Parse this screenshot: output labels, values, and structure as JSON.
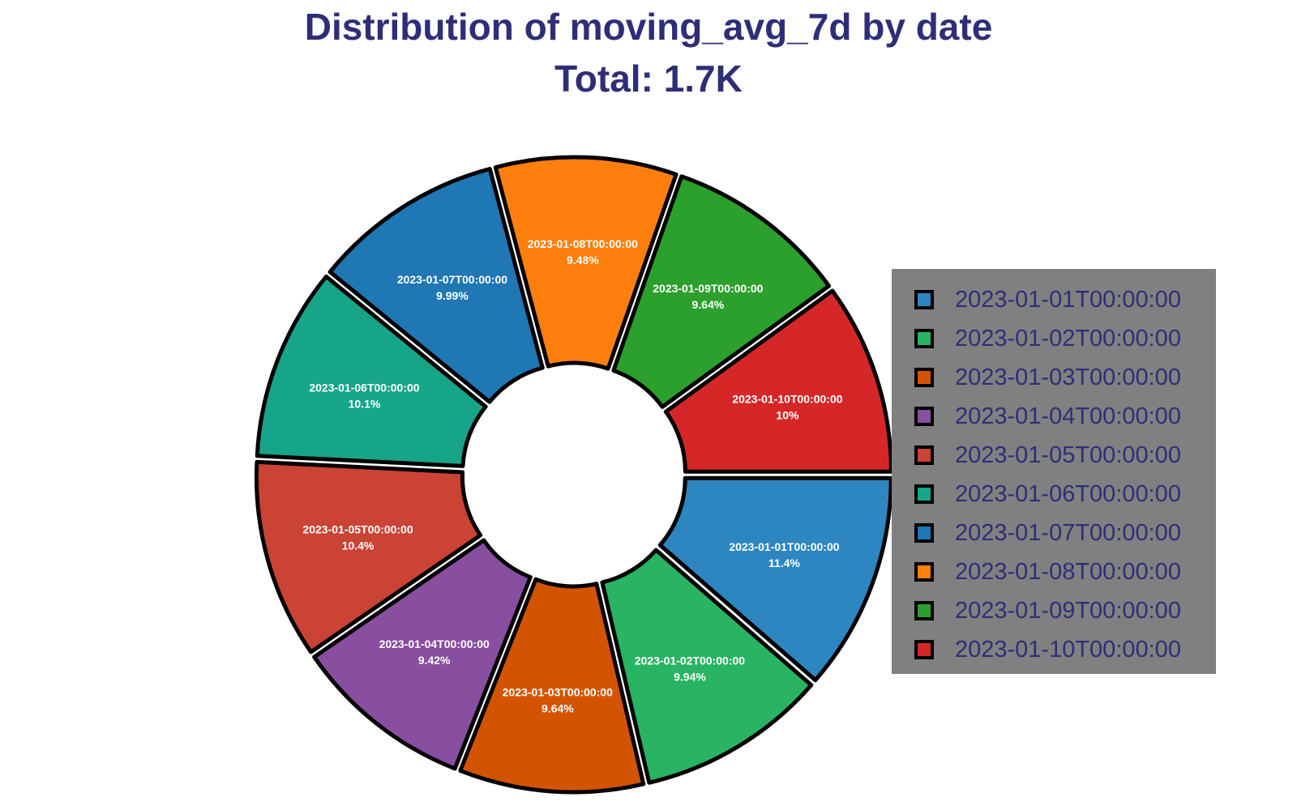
{
  "chart_data": {
    "type": "pie",
    "hole": true,
    "title_line1": "Distribution of moving_avg_7d by date",
    "title_line2": "Total: 1.7K",
    "legend_position": "right",
    "slices": [
      {
        "label": "2023-01-01T00:00:00",
        "percent": 11.4,
        "percent_label": "11.4%",
        "color": "#2e86c1"
      },
      {
        "label": "2023-01-02T00:00:00",
        "percent": 9.94,
        "percent_label": "9.94%",
        "color": "#28b463"
      },
      {
        "label": "2023-01-03T00:00:00",
        "percent": 9.64,
        "percent_label": "9.64%",
        "color": "#d35400"
      },
      {
        "label": "2023-01-04T00:00:00",
        "percent": 9.42,
        "percent_label": "9.42%",
        "color": "#884ea0"
      },
      {
        "label": "2023-01-05T00:00:00",
        "percent": 10.4,
        "percent_label": "10.4%",
        "color": "#cb4335"
      },
      {
        "label": "2023-01-06T00:00:00",
        "percent": 10.1,
        "percent_label": "10.1%",
        "color": "#17a589"
      },
      {
        "label": "2023-01-07T00:00:00",
        "percent": 9.99,
        "percent_label": "9.99%",
        "color": "#1f77b4"
      },
      {
        "label": "2023-01-08T00:00:00",
        "percent": 9.48,
        "percent_label": "9.48%",
        "color": "#ff7f0e"
      },
      {
        "label": "2023-01-09T00:00:00",
        "percent": 9.64,
        "percent_label": "9.64%",
        "color": "#2ca02c"
      },
      {
        "label": "2023-01-10T00:00:00",
        "percent": 10.0,
        "percent_label": "10%",
        "color": "#d62728"
      }
    ]
  }
}
